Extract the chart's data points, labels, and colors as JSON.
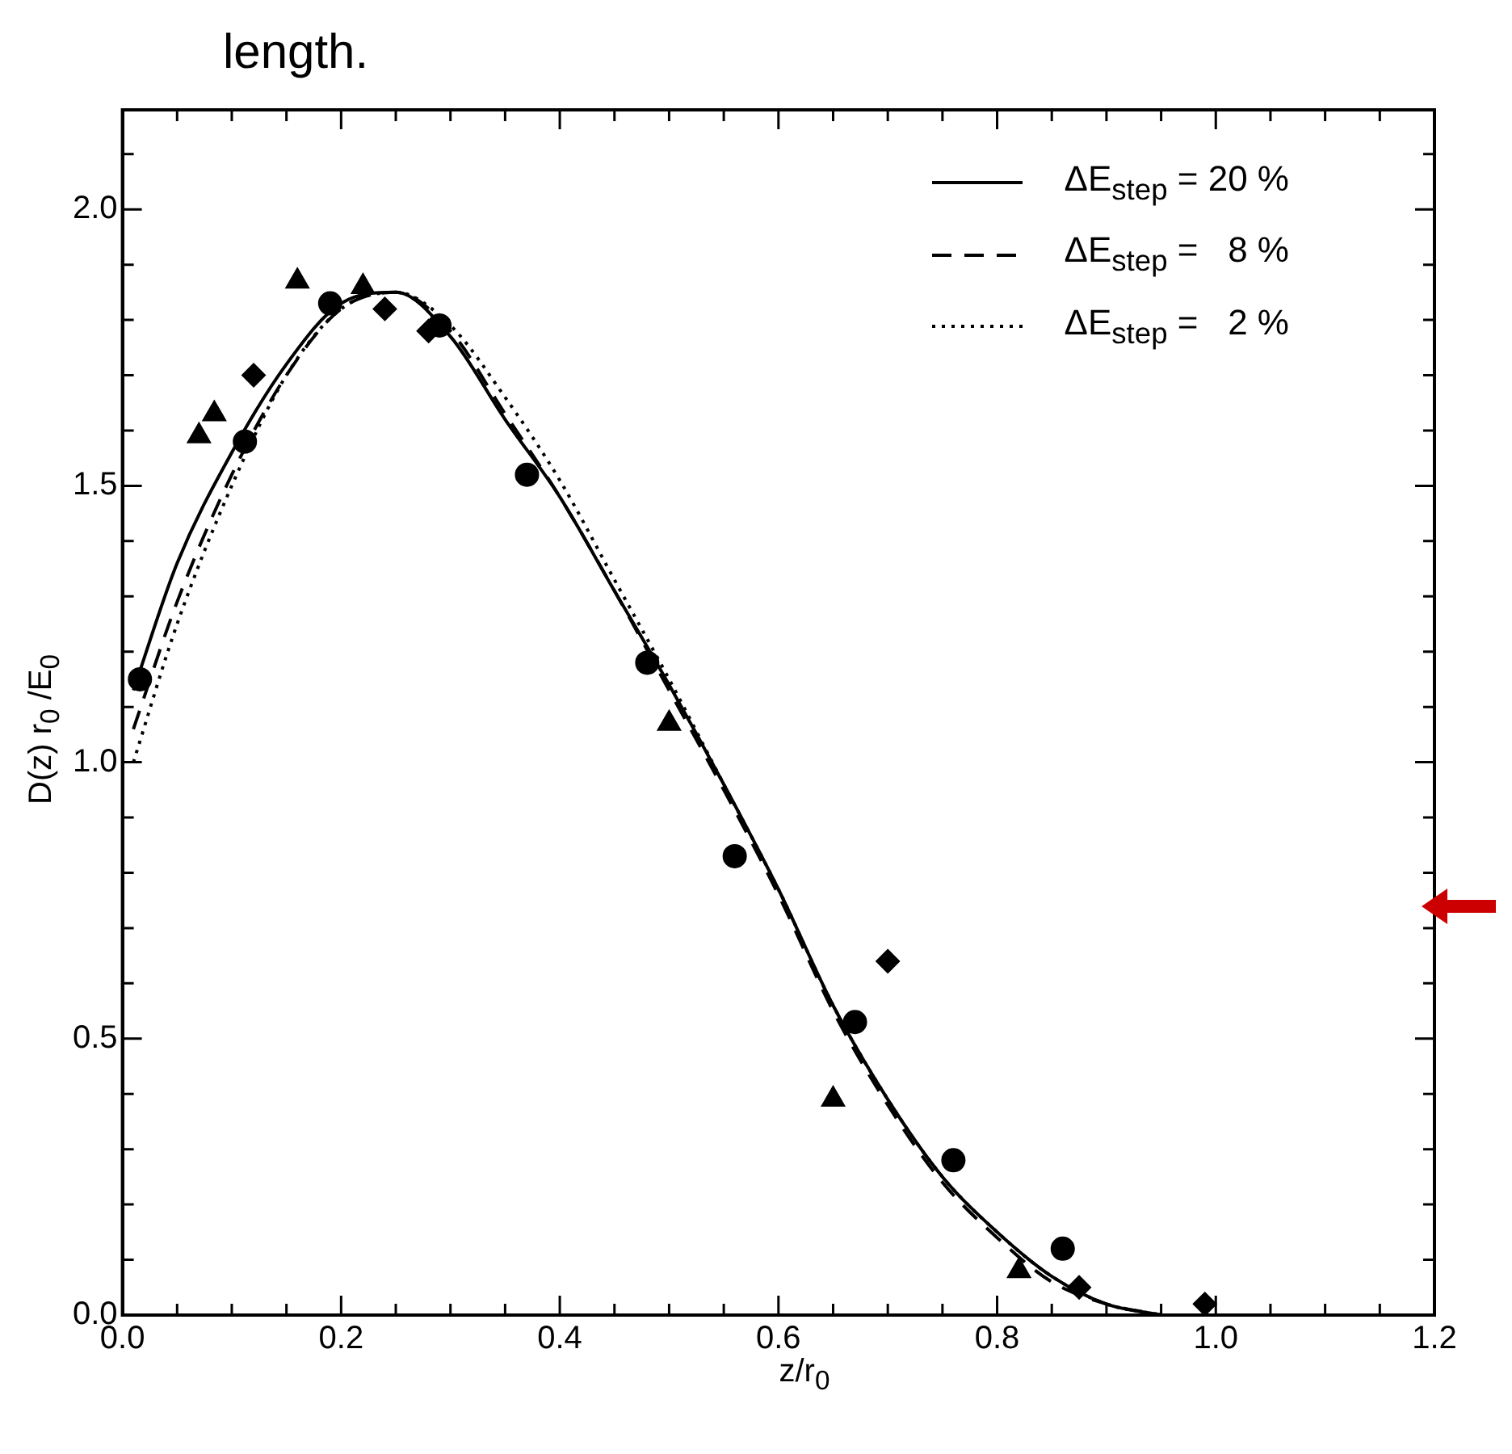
{
  "chart_data": {
    "type": "scatter",
    "xlabel": "z/r$_{0}$",
    "ylabel": "D(z) r$_{0}$ /E$_{0}$",
    "annotations": [
      "length."
    ],
    "xlim": [
      0,
      1.2
    ],
    "ylim": [
      0,
      2.18
    ],
    "xticks": [
      {
        "value": 0,
        "label": "0.0"
      },
      {
        "value": 0.05,
        "label": null
      },
      {
        "value": 0.1,
        "label": null
      },
      {
        "value": 0.15,
        "label": null
      },
      0.2,
      {
        "value": 0.25,
        "label": null
      },
      {
        "value": 0.3,
        "label": null
      },
      {
        "value": 0.35,
        "label": null
      },
      0.4,
      {
        "value": 0.45,
        "label": null
      },
      {
        "value": 0.5,
        "label": null
      },
      {
        "value": 0.55,
        "label": null
      },
      0.6,
      {
        "value": 0.65,
        "label": null
      },
      {
        "value": 0.7,
        "label": null
      },
      {
        "value": 0.75,
        "label": null
      },
      0.8,
      {
        "value": 0.85,
        "label": null
      },
      {
        "value": 0.9,
        "label": null
      },
      {
        "value": 0.95,
        "label": null
      },
      {
        "value": 1.0,
        "label": "1.0"
      },
      {
        "value": 1.05,
        "label": null
      },
      {
        "value": 1.1,
        "label": null
      },
      {
        "value": 1.15,
        "label": null
      },
      1.2
    ],
    "yticks": [
      {
        "value": 0,
        "label": "0.0"
      },
      {
        "value": 0.1,
        "label": null
      },
      {
        "value": 0.2,
        "label": null
      },
      {
        "value": 0.3,
        "label": null
      },
      {
        "value": 0.4,
        "label": null
      },
      0.5,
      {
        "value": 0.6,
        "label": null
      },
      {
        "value": 0.7,
        "label": null
      },
      {
        "value": 0.8,
        "label": null
      },
      {
        "value": 0.9,
        "label": null
      },
      {
        "value": 1.0,
        "label": "1.0"
      },
      {
        "value": 1.1,
        "label": null
      },
      {
        "value": 1.2,
        "label": null
      },
      {
        "value": 1.3,
        "label": null
      },
      {
        "value": 1.4,
        "label": null
      },
      1.5,
      {
        "value": 1.6,
        "label": null
      },
      {
        "value": 1.7,
        "label": null
      },
      {
        "value": 1.8,
        "label": null
      },
      {
        "value": 1.9,
        "label": null
      },
      {
        "value": 2.0,
        "label": "2.0"
      },
      {
        "value": 2.1,
        "label": null
      }
    ],
    "grid": false,
    "legend": "top right",
    "series": [
      {
        "type": "line",
        "name": "ΔE$_{step}$ = 20 %",
        "color": "#000000",
        "line_style": "solid",
        "marker": "none",
        "x": [
          0.01,
          0.05,
          0.1,
          0.15,
          0.2,
          0.25,
          0.3,
          0.35,
          0.4,
          0.45,
          0.5,
          0.55,
          0.6,
          0.65,
          0.7,
          0.75,
          0.8,
          0.85,
          0.9,
          0.95
        ],
        "values": [
          1.13,
          1.36,
          1.56,
          1.72,
          1.83,
          1.85,
          1.77,
          1.62,
          1.48,
          1.31,
          1.14,
          0.96,
          0.77,
          0.56,
          0.39,
          0.25,
          0.15,
          0.07,
          0.02,
          0.0
        ]
      },
      {
        "type": "line",
        "name": "ΔE$_{step}$ =   8 %",
        "color": "#000000",
        "line_style": "dashed",
        "marker": "none",
        "x": [
          0.01,
          0.05,
          0.1,
          0.15,
          0.2,
          0.25,
          0.3,
          0.35,
          0.4,
          0.45,
          0.5,
          0.55,
          0.6,
          0.65,
          0.7,
          0.75,
          0.8,
          0.85,
          0.9,
          0.95
        ],
        "values": [
          1.06,
          1.29,
          1.52,
          1.7,
          1.82,
          1.85,
          1.78,
          1.63,
          1.48,
          1.31,
          1.13,
          0.95,
          0.76,
          0.55,
          0.38,
          0.24,
          0.14,
          0.06,
          0.02,
          0.0
        ]
      },
      {
        "type": "line",
        "name": "ΔE$_{step}$ =   2 %",
        "color": "#000000",
        "line_style": "dotted",
        "marker": "none",
        "x": [
          0.01,
          0.05,
          0.1,
          0.15,
          0.2,
          0.25,
          0.3,
          0.35,
          0.4,
          0.45,
          0.5,
          0.55,
          0.6,
          0.65,
          0.7,
          0.75,
          0.8,
          0.85,
          0.9,
          0.95
        ],
        "values": [
          1.0,
          1.25,
          1.5,
          1.7,
          1.82,
          1.85,
          1.79,
          1.66,
          1.51,
          1.33,
          1.15,
          0.96,
          0.77,
          0.56,
          0.39,
          0.25,
          0.15,
          0.07,
          0.02,
          0.0
        ]
      },
      {
        "color": "#000000",
        "marker": "circle",
        "x": [
          0.016,
          0.112,
          0.19,
          0.29,
          0.37,
          0.48,
          0.56,
          0.67,
          0.76,
          0.86
        ],
        "values": [
          1.15,
          1.58,
          1.83,
          1.79,
          1.52,
          1.18,
          0.83,
          0.53,
          0.28,
          0.12
        ]
      },
      {
        "color": "#000000",
        "marker": "triangle",
        "x": [
          0.07,
          0.084,
          0.16,
          0.22,
          0.5,
          0.65,
          0.82
        ],
        "values": [
          1.59,
          1.63,
          1.87,
          1.86,
          1.07,
          0.39,
          0.08
        ]
      },
      {
        "color": "#000000",
        "marker": "diamond",
        "x": [
          0.12,
          0.24,
          0.28,
          0.7,
          0.875,
          0.99
        ],
        "values": [
          1.7,
          1.82,
          1.78,
          0.64,
          0.05,
          0.02
        ]
      }
    ]
  }
}
